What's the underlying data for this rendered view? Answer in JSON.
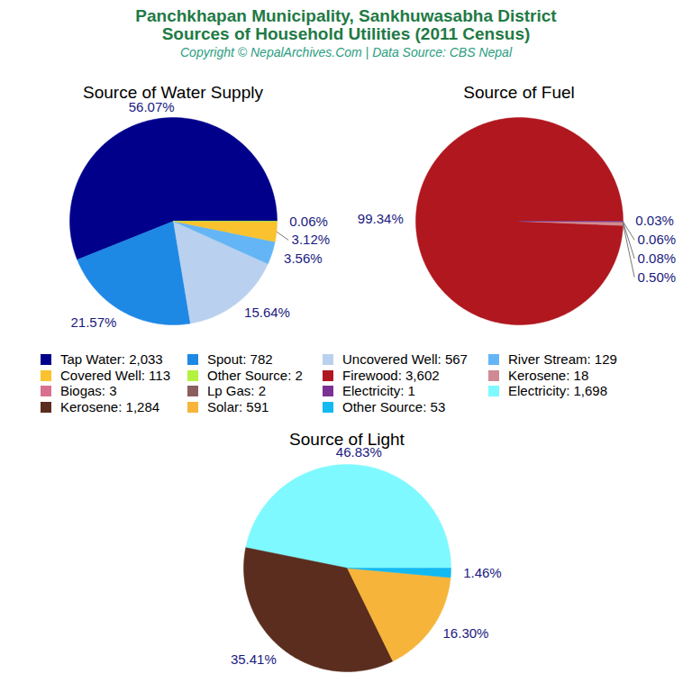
{
  "title": [
    "Panchkhapan Municipality, Sankhuwasabha District",
    "Sources of Household Utilities (2011 Census)"
  ],
  "subtitle": "Copyright © NepalArchives.Com | Data Source: CBS Nepal",
  "chart_data": [
    {
      "type": "pie",
      "title": "Source of Water Supply",
      "categories": [
        "Tap Water: 2,033",
        "Spout: 782",
        "Uncovered Well: 567",
        "River Stream: 129",
        "Covered Well: 113",
        "Other Source: 2"
      ],
      "values": [
        56.07,
        21.57,
        15.64,
        3.56,
        3.12,
        0.06
      ],
      "value_labels": [
        "56.07%",
        "21.57%",
        "15.64%",
        "3.56%",
        "3.12%",
        "0.06%"
      ],
      "colors": [
        "#00008b",
        "#1e88e5",
        "#b9d1ee",
        "#64b5f6",
        "#f9c22e",
        "#b5f23f"
      ],
      "data_labels": true,
      "legend": "bottom"
    },
    {
      "type": "pie",
      "title": "Source of Fuel",
      "categories": [
        "Firewood: 3,602",
        "Kerosene: 18",
        "Biogas: 3",
        "Lp Gas: 2",
        "Electricity: 1"
      ],
      "values": [
        99.34,
        0.5,
        0.08,
        0.06,
        0.03
      ],
      "value_labels": [
        "99.34%",
        "0.50%",
        "0.08%",
        "0.06%",
        "0.03%"
      ],
      "colors": [
        "#b0171f",
        "#d08a93",
        "#d9708f",
        "#8c5d5d",
        "#7b3294"
      ],
      "data_labels": true,
      "legend": "bottom"
    },
    {
      "type": "pie",
      "title": "Source of Light",
      "categories": [
        "Electricity: 1,698",
        "Kerosene: 1,284",
        "Solar: 591",
        "Other Source: 53"
      ],
      "values": [
        46.83,
        35.41,
        16.3,
        1.46
      ],
      "value_labels": [
        "46.83%",
        "35.41%",
        "16.30%",
        "1.46%"
      ],
      "colors": [
        "#7ef9ff",
        "#5a2d1e",
        "#f6b53a",
        "#13b9f1"
      ],
      "data_labels": true,
      "legend": "bottom"
    }
  ]
}
